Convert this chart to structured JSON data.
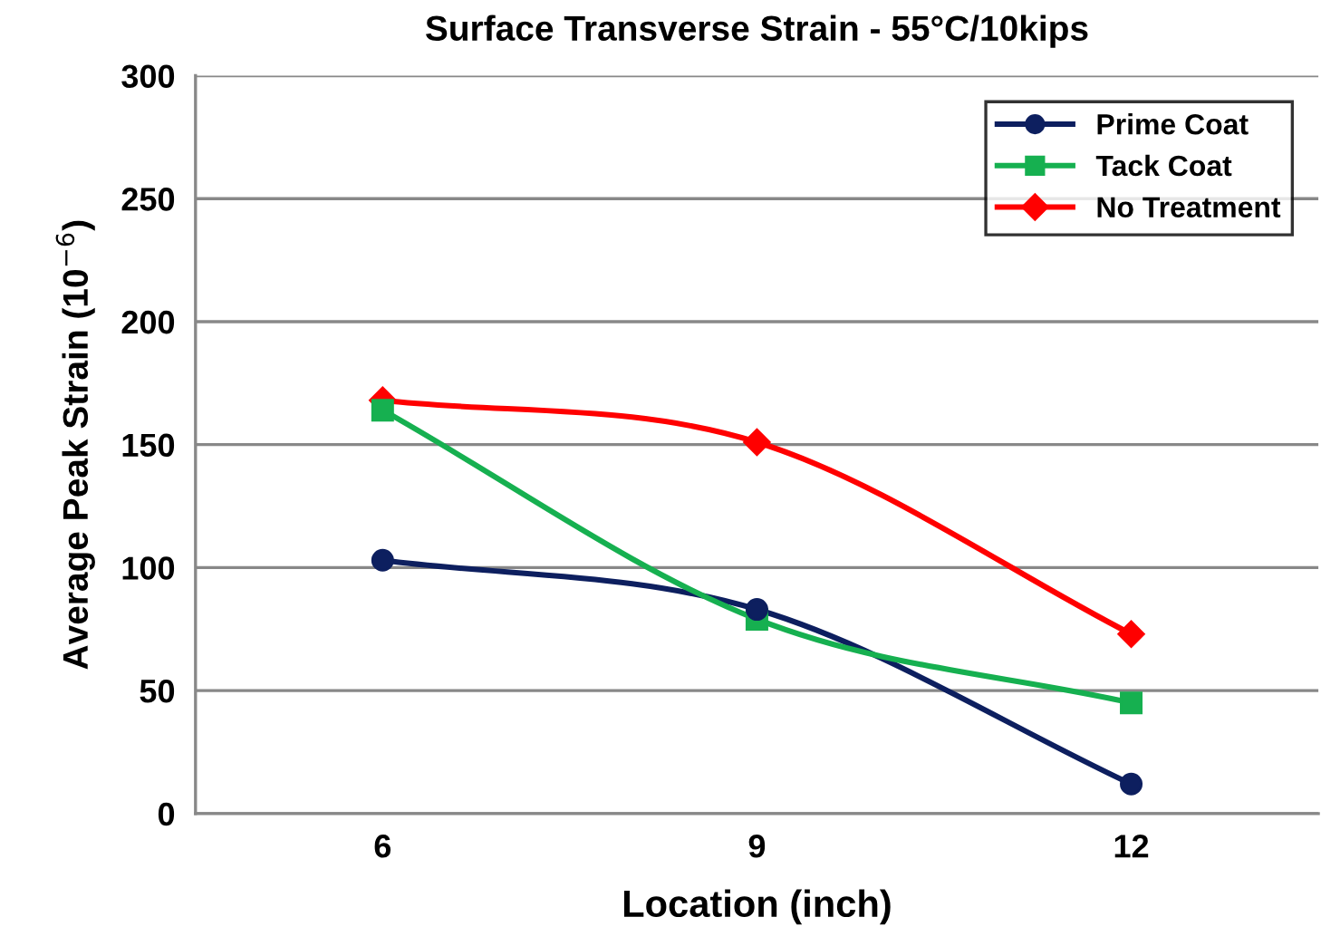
{
  "chart_data": {
    "type": "line",
    "title": "Surface Transverse Strain - 55°C/10kips",
    "xlabel": "Location (inch)",
    "ylabel": "Average Peak Strain (10$^{−6}$)",
    "x": [
      6,
      9,
      12
    ],
    "xlim": [
      4.5,
      13.5
    ],
    "xticks": [
      6,
      9,
      12
    ],
    "ylim": [
      0,
      300
    ],
    "yticks": [
      0,
      50,
      100,
      150,
      200,
      250,
      300
    ],
    "grid": "y",
    "legend": "top right",
    "series": [
      {
        "name": "Prime Coat",
        "color": "#0d1f5f",
        "marker": "circle",
        "values": [
          103,
          83,
          12
        ]
      },
      {
        "name": "Tack Coat",
        "color": "#16b050",
        "marker": "square",
        "values": [
          164,
          79,
          45
        ]
      },
      {
        "name": "No Treatment",
        "color": "#ff0000",
        "marker": "diamond",
        "values": [
          168,
          151,
          73
        ]
      }
    ]
  }
}
